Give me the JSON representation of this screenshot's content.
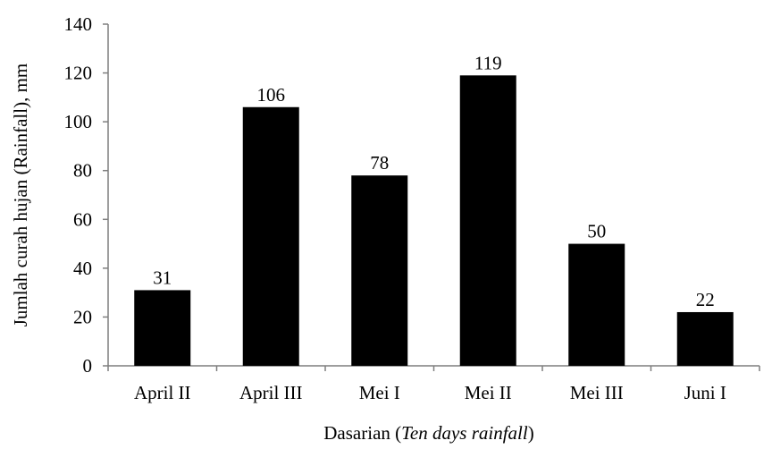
{
  "chart_data": {
    "type": "bar",
    "title": "",
    "categories": [
      "April II",
      "April III",
      "Mei I",
      "Mei II",
      "Mei III",
      "Juni I"
    ],
    "values": [
      31,
      106,
      78,
      119,
      50,
      22
    ],
    "data_labels": [
      "31",
      "106",
      "78",
      "119",
      "50",
      "22"
    ],
    "ylim": [
      0,
      140
    ],
    "yticks": [
      0,
      20,
      40,
      60,
      80,
      100,
      120,
      140
    ],
    "ylabel": "Jumlah curah hujan (Rainfall), mm",
    "xlabel": {
      "main": "Dasarian (",
      "italic": "Ten days rainfall",
      "close": ")"
    },
    "grid": false,
    "legend": "none",
    "bar_color": "#000000"
  }
}
